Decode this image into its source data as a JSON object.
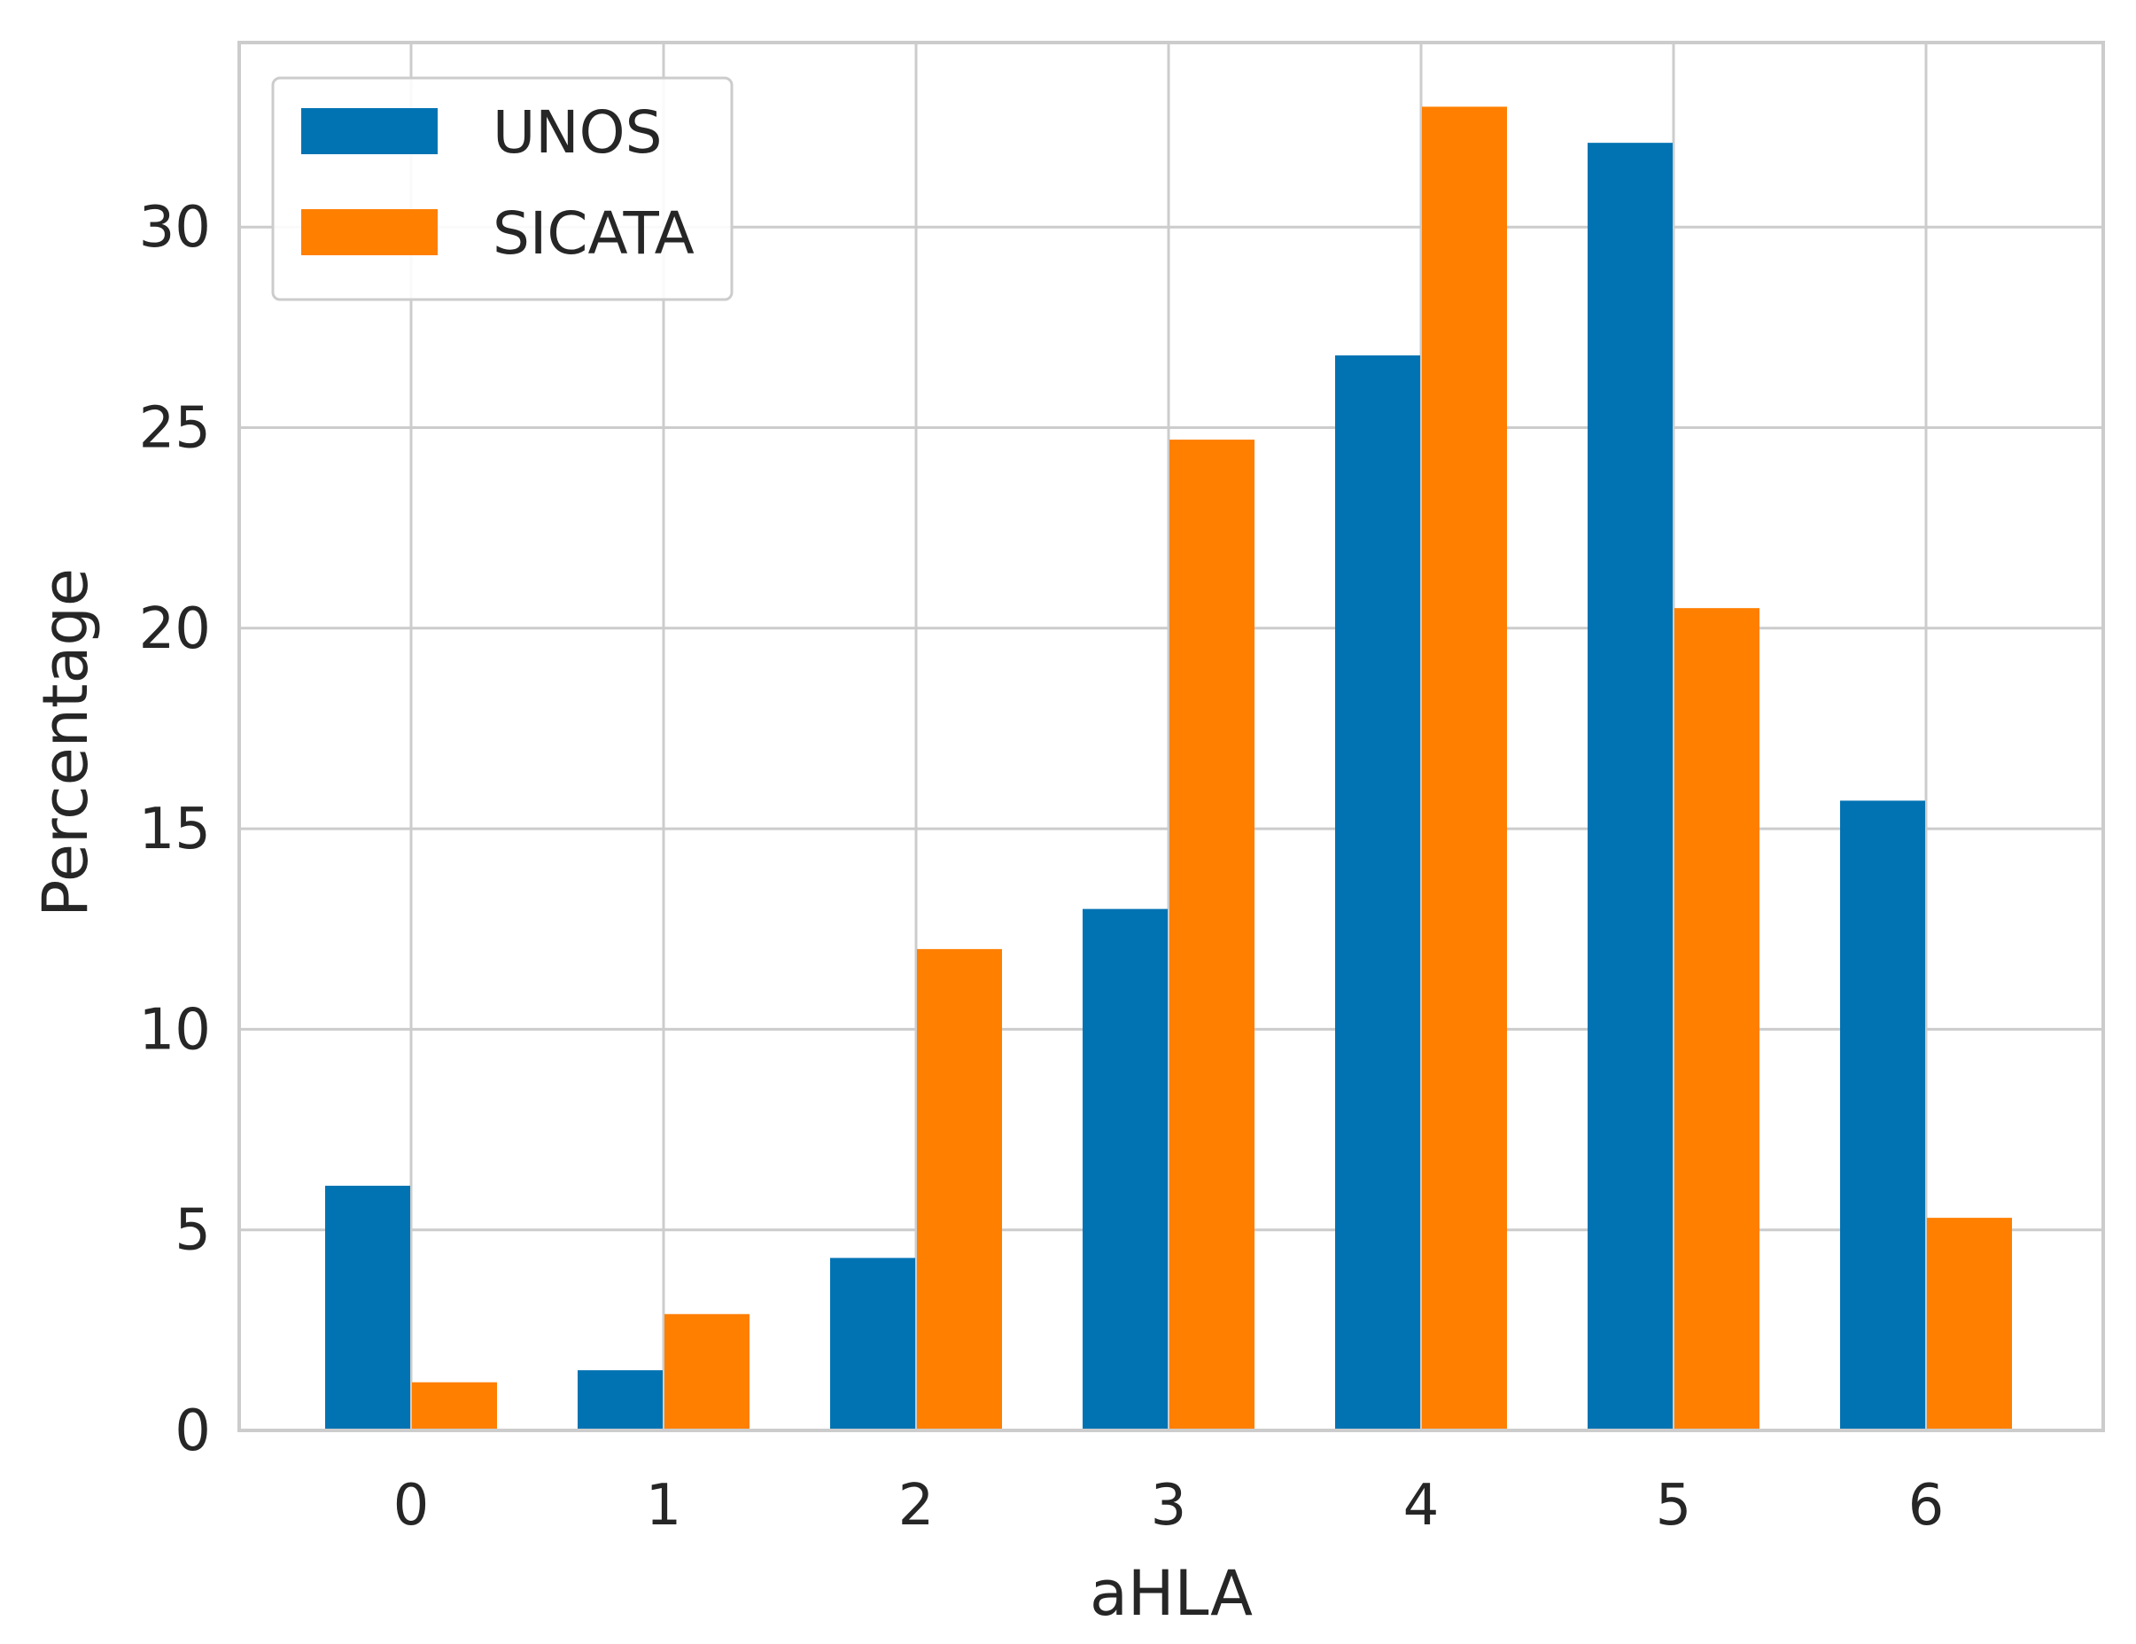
{
  "chart_data": {
    "type": "bar",
    "xlabel": "aHLA",
    "ylabel": "Percentage",
    "categories": [
      "0",
      "1",
      "2",
      "3",
      "4",
      "5",
      "6"
    ],
    "series": [
      {
        "name": "UNOS",
        "color": "#0173b2",
        "values": [
          6.1,
          1.5,
          4.3,
          13.0,
          26.8,
          32.1,
          15.7
        ]
      },
      {
        "name": "SICATA",
        "color": "#ff7f00",
        "values": [
          1.2,
          2.9,
          12.0,
          24.7,
          33.0,
          20.5,
          5.3
        ]
      }
    ],
    "yticks": [
      0,
      5,
      10,
      15,
      20,
      25,
      30
    ],
    "ylim": [
      0,
      34.6
    ],
    "grid": true,
    "legend": "top-left"
  }
}
